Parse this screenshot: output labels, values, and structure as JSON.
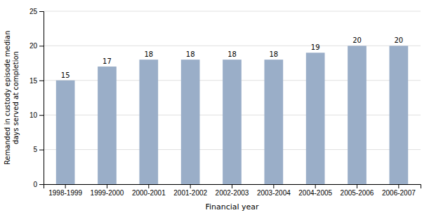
{
  "chart_data": {
    "type": "bar",
    "categories": [
      "1998-1999",
      "1999-2000",
      "2000-2001",
      "2001-2002",
      "2002-2003",
      "2003-2004",
      "2004-2005",
      "2005-2006",
      "2006-2007"
    ],
    "values": [
      15,
      17,
      18,
      18,
      18,
      18,
      19,
      20,
      20
    ],
    "color": "#9aaec8",
    "ylabel": "Remanded in custody episode median\ndays served at completion",
    "xlabel": "Financial year",
    "ylim": [
      0,
      25
    ],
    "yticks": [
      0,
      5,
      10,
      15,
      20,
      25
    ],
    "grid": true,
    "data_labels": true
  }
}
